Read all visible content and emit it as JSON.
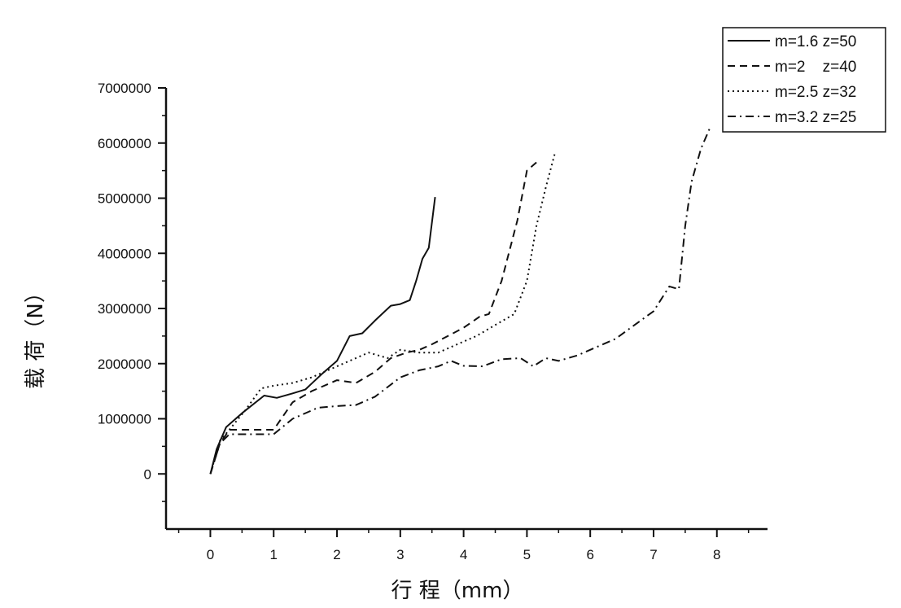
{
  "chart_data": {
    "type": "line",
    "title": "",
    "xlabel": "行 程（mm）",
    "ylabel": "载 荷（N）",
    "xlim": [
      -0.7,
      8.8
    ],
    "ylim": [
      -1000000,
      7000000
    ],
    "x_ticks": [
      0,
      1,
      2,
      3,
      4,
      5,
      6,
      7,
      8
    ],
    "x_tick_labels": [
      "0",
      "1",
      "2",
      "3",
      "4",
      "5",
      "6",
      "7",
      "8"
    ],
    "y_ticks": [
      0,
      1000000,
      2000000,
      3000000,
      4000000,
      5000000,
      6000000,
      7000000
    ],
    "y_tick_labels": [
      "0",
      "1000000",
      "2000000",
      "3000000",
      "4000000",
      "5000000",
      "6000000",
      "7000000"
    ],
    "grid": false,
    "legend_position": "top-right",
    "series": [
      {
        "name": "m=1.6 z=50",
        "style": "solid",
        "x": [
          0,
          0.1,
          0.25,
          0.5,
          0.85,
          1.05,
          1.3,
          1.5,
          1.75,
          2.0,
          2.2,
          2.4,
          2.6,
          2.85,
          3.0,
          3.15,
          3.25,
          3.35,
          3.45,
          3.55
        ],
        "y": [
          0,
          450000,
          850000,
          1100000,
          1420000,
          1380000,
          1460000,
          1530000,
          1800000,
          2050000,
          2500000,
          2550000,
          2780000,
          3050000,
          3080000,
          3150000,
          3500000,
          3900000,
          4100000,
          5020000
        ]
      },
      {
        "name": "m=2    z=40",
        "style": "dashed",
        "x": [
          0,
          0.15,
          0.3,
          1.0,
          1.3,
          1.6,
          2.0,
          2.3,
          2.6,
          2.85,
          3.1,
          3.3,
          3.5,
          3.75,
          4.0,
          4.25,
          4.4,
          4.6,
          4.85,
          5.0,
          5.15
        ],
        "y": [
          0,
          550000,
          800000,
          800000,
          1300000,
          1500000,
          1700000,
          1650000,
          1850000,
          2100000,
          2200000,
          2250000,
          2350000,
          2500000,
          2650000,
          2850000,
          2900000,
          3500000,
          4600000,
          5500000,
          5650000
        ]
      },
      {
        "name": "m=2.5 z=32",
        "style": "dotted",
        "x": [
          0,
          0.15,
          0.3,
          0.55,
          0.8,
          1.0,
          1.3,
          1.6,
          2.0,
          2.5,
          2.8,
          3.0,
          3.3,
          3.6,
          3.9,
          4.2,
          4.5,
          4.8,
          5.0,
          5.15,
          5.3,
          5.45
        ],
        "y": [
          0,
          600000,
          800000,
          1150000,
          1550000,
          1600000,
          1650000,
          1750000,
          1950000,
          2200000,
          2100000,
          2250000,
          2200000,
          2200000,
          2350000,
          2500000,
          2700000,
          2900000,
          3500000,
          4500000,
          5200000,
          5850000
        ]
      },
      {
        "name": "m=3.2 z=25",
        "style": "dashdot",
        "x": [
          0,
          0.15,
          0.3,
          0.6,
          1.0,
          1.3,
          1.7,
          2.0,
          2.3,
          2.6,
          3.0,
          3.3,
          3.6,
          3.8,
          4.0,
          4.3,
          4.6,
          4.9,
          5.1,
          5.3,
          5.5,
          5.8,
          6.1,
          6.4,
          6.7,
          7.0,
          7.25,
          7.4,
          7.5,
          7.6,
          7.75,
          7.9
        ],
        "y": [
          0,
          550000,
          720000,
          720000,
          720000,
          1000000,
          1200000,
          1230000,
          1250000,
          1400000,
          1750000,
          1880000,
          1950000,
          2050000,
          1960000,
          1950000,
          2080000,
          2100000,
          1950000,
          2100000,
          2050000,
          2150000,
          2300000,
          2450000,
          2700000,
          2950000,
          3400000,
          3350000,
          4500000,
          5300000,
          5900000,
          6300000
        ]
      }
    ]
  }
}
